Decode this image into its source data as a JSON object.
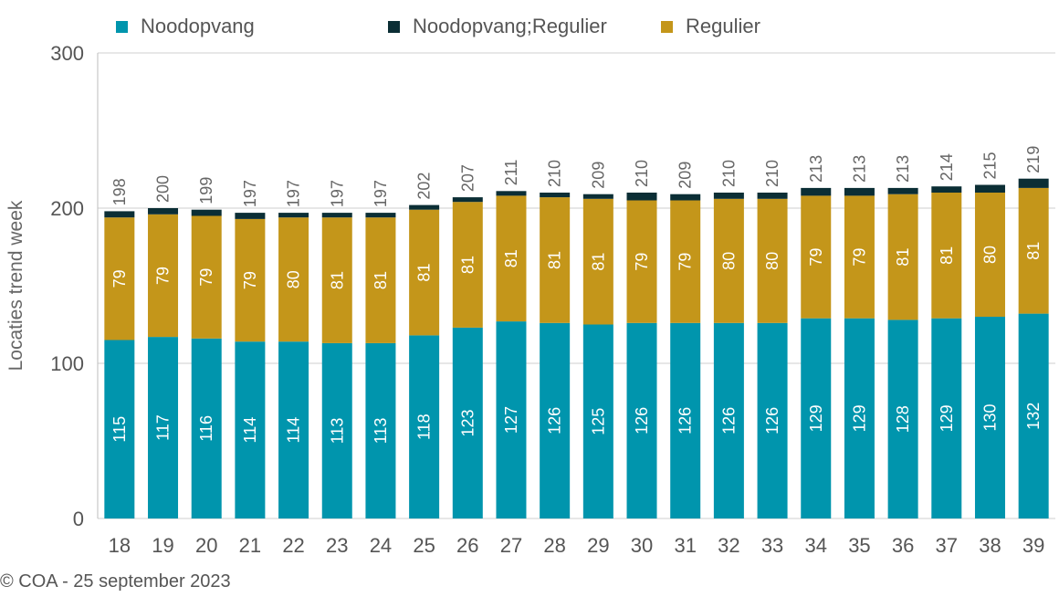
{
  "chart_data": {
    "type": "bar",
    "stacked": true,
    "ylabel": "Locaties trend week",
    "xlabel": "",
    "ylim": [
      0,
      300
    ],
    "yticks": [
      0,
      100,
      200,
      300
    ],
    "grid": true,
    "legend_position": "top",
    "categories": [
      "18",
      "19",
      "20",
      "21",
      "22",
      "23",
      "24",
      "25",
      "26",
      "27",
      "28",
      "29",
      "30",
      "31",
      "32",
      "33",
      "34",
      "35",
      "36",
      "37",
      "38",
      "39"
    ],
    "series": [
      {
        "name": "Noodopvang",
        "color": "#0095ad",
        "values": [
          115,
          117,
          116,
          114,
          114,
          113,
          113,
          118,
          123,
          127,
          126,
          125,
          126,
          126,
          126,
          126,
          129,
          129,
          128,
          129,
          130,
          132
        ]
      },
      {
        "name": "Regulier",
        "color": "#c4961a",
        "values": [
          79,
          79,
          79,
          79,
          80,
          81,
          81,
          81,
          81,
          81,
          81,
          81,
          79,
          79,
          80,
          80,
          79,
          79,
          81,
          81,
          80,
          81
        ]
      },
      {
        "name": "Noodopvang;Regulier",
        "color": "#0b2e35",
        "values": [
          4,
          4,
          4,
          4,
          3,
          3,
          3,
          3,
          3,
          3,
          3,
          3,
          5,
          4,
          4,
          4,
          5,
          5,
          4,
          4,
          5,
          6
        ]
      }
    ],
    "totals": [
      198,
      200,
      199,
      197,
      197,
      197,
      197,
      202,
      207,
      211,
      210,
      209,
      210,
      209,
      210,
      210,
      213,
      213,
      213,
      214,
      215,
      219
    ],
    "legend_order": [
      "Noodopvang",
      "Noodopvang;Regulier",
      "Regulier"
    ]
  },
  "footnote": "© COA - 25 september 2023"
}
